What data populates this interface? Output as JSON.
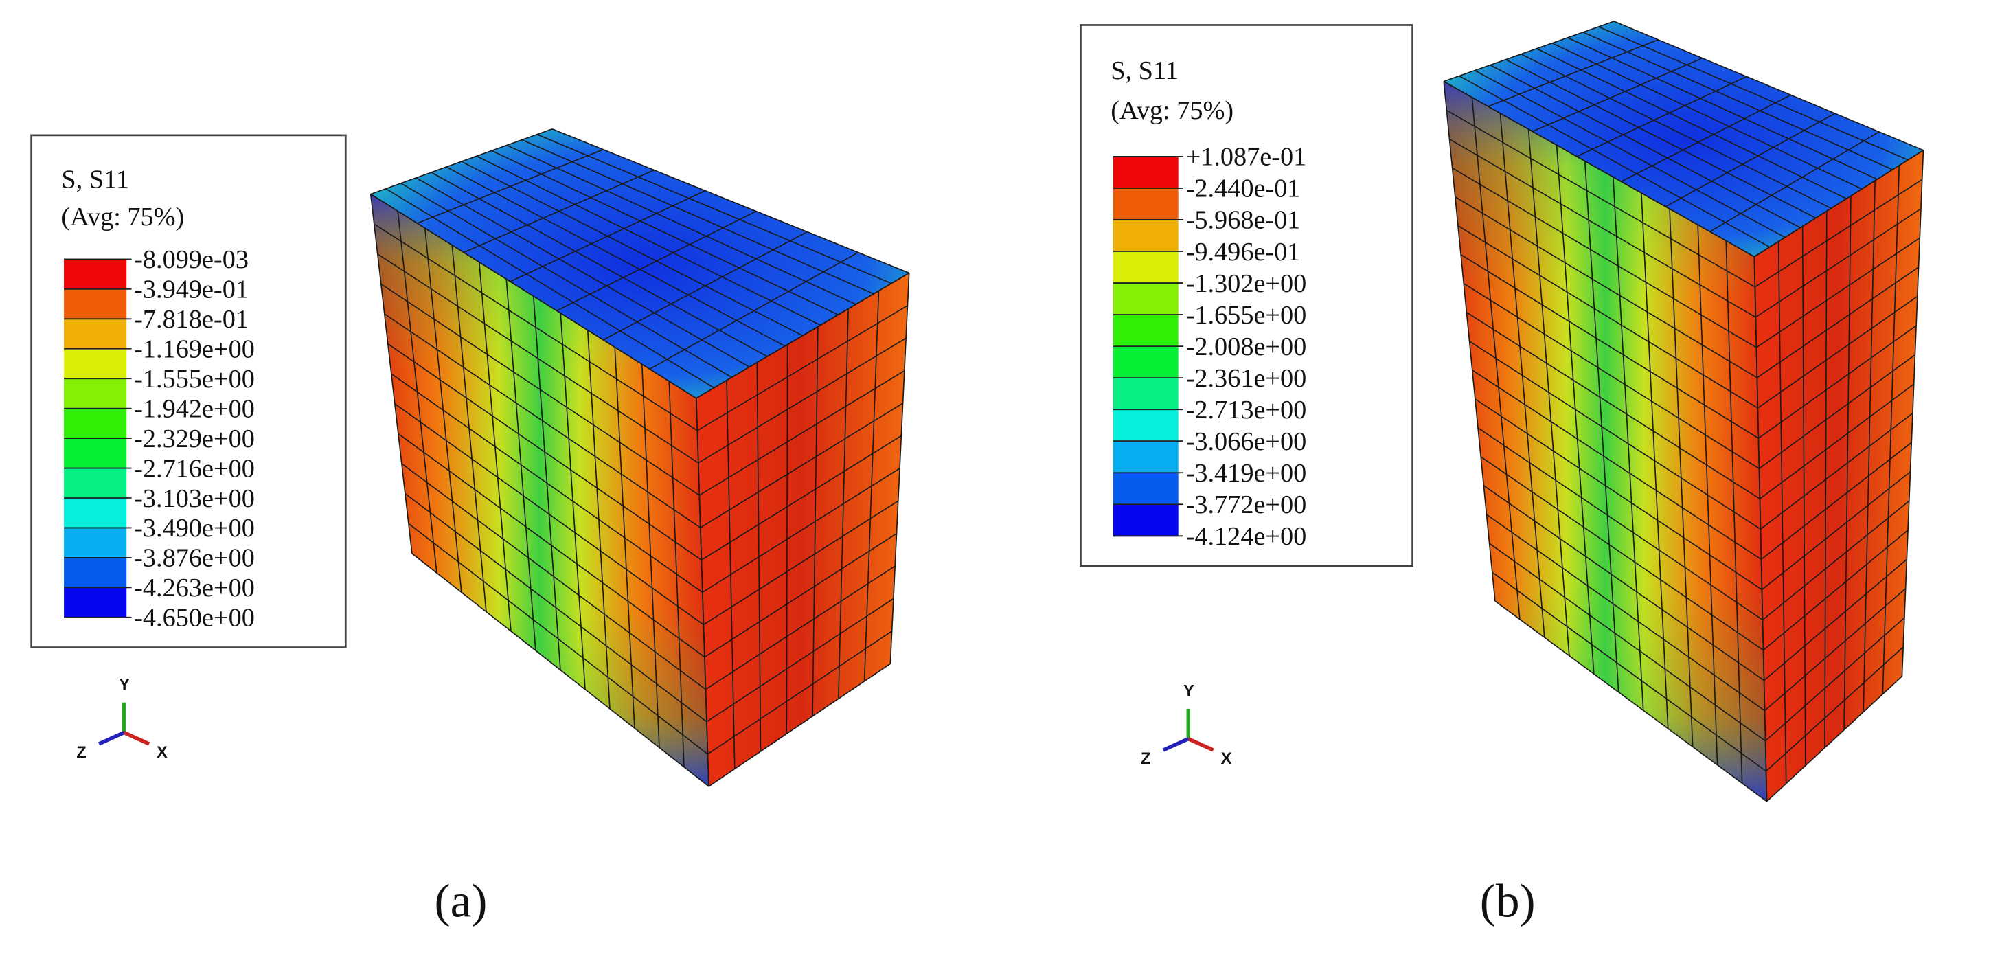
{
  "panels": [
    {
      "legend": {
        "title": "S, S11",
        "subtitle": "(Avg: 75%)",
        "labels": [
          "-8.099e-03",
          "-3.949e-01",
          "-7.818e-01",
          "-1.169e+00",
          "-1.555e+00",
          "-1.942e+00",
          "-2.329e+00",
          "-2.716e+00",
          "-3.103e+00",
          "-3.490e+00",
          "-3.876e+00",
          "-4.263e+00",
          "-4.650e+00"
        ]
      },
      "triad": {
        "y": "Y",
        "z": "Z",
        "x": "X"
      },
      "caption": "(a)"
    },
    {
      "legend": {
        "title": "S, S11",
        "subtitle": "(Avg: 75%)",
        "labels": [
          "+1.087e-01",
          "-2.440e-01",
          "-5.968e-01",
          "-9.496e-01",
          "-1.302e+00",
          "-1.655e+00",
          "-2.008e+00",
          "-2.361e+00",
          "-2.713e+00",
          "-3.066e+00",
          "-3.419e+00",
          "-3.772e+00",
          "-4.124e+00"
        ]
      },
      "triad": {
        "y": "Y",
        "z": "Z",
        "x": "X"
      },
      "caption": "(b)"
    }
  ]
}
